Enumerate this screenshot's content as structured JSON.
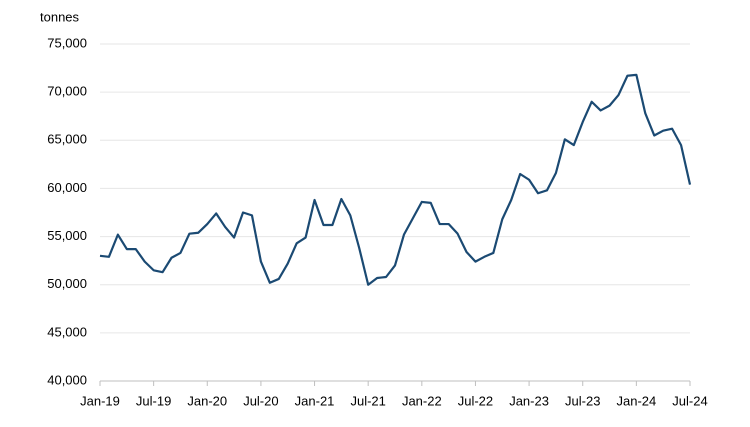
{
  "chart_data": {
    "type": "line",
    "y_label": "tonnes",
    "categories": [
      "Jan-19",
      null,
      null,
      null,
      null,
      null,
      "Jul-19",
      null,
      null,
      null,
      null,
      null,
      "Jan-20",
      null,
      null,
      null,
      null,
      null,
      "Jul-20",
      null,
      null,
      null,
      null,
      null,
      "Jan-21",
      null,
      null,
      null,
      null,
      null,
      "Jul-21",
      null,
      null,
      null,
      null,
      null,
      "Jan-22",
      null,
      null,
      null,
      null,
      null,
      "Jul-22",
      null,
      null,
      null,
      null,
      null,
      "Jan-23",
      null,
      null,
      null,
      null,
      null,
      "Jul-23",
      null,
      null,
      null,
      null,
      null,
      "Jan-24",
      null,
      null,
      null,
      null,
      null,
      "Jul-24"
    ],
    "values": [
      53000,
      52900,
      55200,
      53700,
      53700,
      52400,
      51500,
      51300,
      52800,
      53300,
      55300,
      55400,
      56300,
      57400,
      56000,
      54900,
      57500,
      57200,
      52400,
      50200,
      50600,
      52200,
      54300,
      54900,
      58800,
      56200,
      56200,
      58900,
      57200,
      53800,
      50000,
      50700,
      50800,
      52000,
      55200,
      56900,
      58600,
      58500,
      56300,
      56300,
      55300,
      53400,
      52400,
      52900,
      53300,
      56800,
      58800,
      61500,
      60900,
      59500,
      59800,
      61600,
      65100,
      64500,
      66900,
      69000,
      68100,
      68600,
      69700,
      71700,
      71800,
      67800,
      65500,
      66000,
      66200,
      64500,
      60400
    ],
    "color": "#1b4a73",
    "ylim": [
      40000,
      75000
    ],
    "yticks": [
      {
        "value": 40000,
        "label": "40,000"
      },
      {
        "value": 45000,
        "label": "45,000"
      },
      {
        "value": 50000,
        "label": "50,000"
      },
      {
        "value": 55000,
        "label": "55,000"
      },
      {
        "value": 60000,
        "label": "60,000"
      },
      {
        "value": 65000,
        "label": "65,000"
      },
      {
        "value": 70000,
        "label": "70,000"
      },
      {
        "value": 75000,
        "label": "75,000"
      }
    ],
    "grid": true
  }
}
